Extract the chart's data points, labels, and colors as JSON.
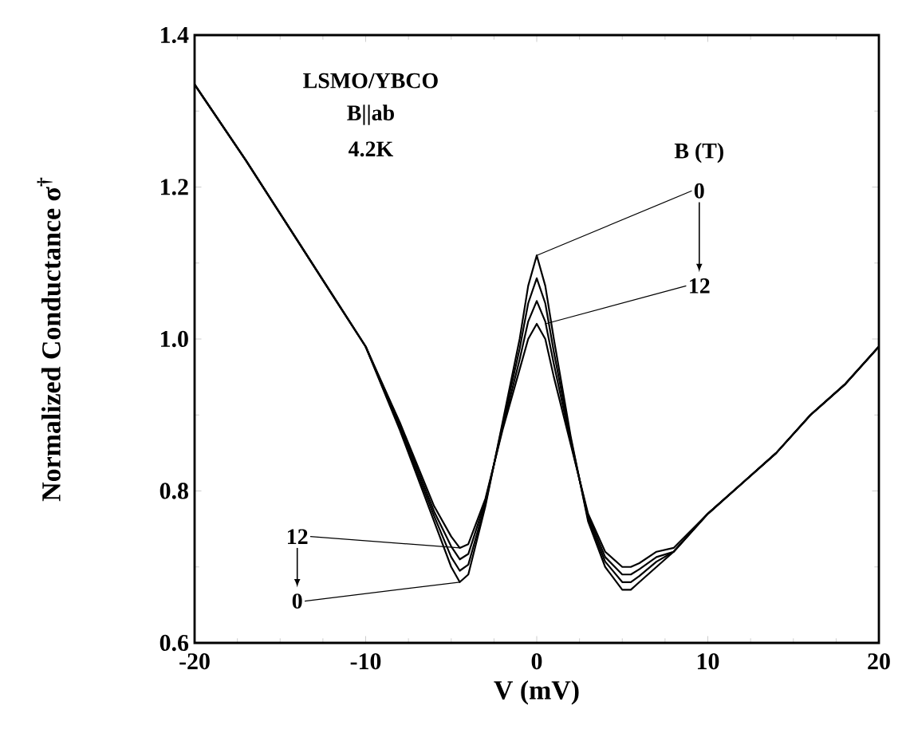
{
  "chart_data": {
    "type": "line",
    "xlabel": "V  (mV)",
    "ylabel": "Normalized  Conductance  σ$^{†}$",
    "x": [
      -20,
      -17,
      -14,
      -12,
      -10,
      -8,
      -6,
      -5,
      -4.5,
      -4,
      -3,
      -2,
      -1,
      -0.5,
      0,
      0.5,
      1,
      2,
      3,
      4,
      5,
      5.5,
      6,
      7,
      8,
      10,
      12,
      14,
      16,
      18,
      20
    ],
    "series": [
      {
        "color": "#000000",
        "values": [
          1.335,
          1.235,
          1.13,
          1.06,
          0.99,
          0.88,
          0.76,
          0.7,
          0.68,
          0.69,
          0.78,
          0.89,
          1.0,
          1.07,
          1.11,
          1.07,
          1.0,
          0.87,
          0.76,
          0.7,
          0.67,
          0.67,
          0.68,
          0.7,
          0.72,
          0.77,
          0.81,
          0.85,
          0.9,
          0.94,
          0.99
        ]
      },
      {
        "color": "#000000",
        "values": [
          1.335,
          1.235,
          1.13,
          1.06,
          0.99,
          0.883,
          0.767,
          0.713,
          0.695,
          0.703,
          0.783,
          0.887,
          0.987,
          1.047,
          1.08,
          1.047,
          0.983,
          0.867,
          0.763,
          0.707,
          0.68,
          0.68,
          0.688,
          0.707,
          0.72,
          0.77,
          0.81,
          0.85,
          0.9,
          0.94,
          0.99
        ]
      },
      {
        "color": "#000000",
        "values": [
          1.335,
          1.235,
          1.13,
          1.06,
          0.99,
          0.887,
          0.773,
          0.727,
          0.71,
          0.717,
          0.787,
          0.883,
          0.973,
          1.023,
          1.05,
          1.023,
          0.967,
          0.863,
          0.767,
          0.713,
          0.69,
          0.69,
          0.697,
          0.713,
          0.72,
          0.77,
          0.81,
          0.85,
          0.9,
          0.94,
          0.99
        ]
      },
      {
        "color": "#000000",
        "values": [
          1.335,
          1.235,
          1.13,
          1.06,
          0.99,
          0.89,
          0.78,
          0.74,
          0.725,
          0.73,
          0.79,
          0.88,
          0.96,
          1.0,
          1.02,
          1.0,
          0.95,
          0.86,
          0.77,
          0.72,
          0.7,
          0.7,
          0.705,
          0.72,
          0.725,
          0.77,
          0.81,
          0.85,
          0.9,
          0.94,
          0.99
        ]
      }
    ],
    "xlim": [
      -20,
      20
    ],
    "ylim": [
      0.6,
      1.4
    ],
    "xticks": [
      -20,
      -10,
      0,
      10,
      20
    ],
    "yticks": [
      0.6,
      0.8,
      {
        "value": 1.0,
        "label": "1.0"
      },
      1.2,
      1.4
    ],
    "grid": false,
    "marker": "none",
    "line_style": "solid",
    "annotations": [
      "LSMO/YBCO",
      "B||ab",
      "4.2K",
      "B  (T)",
      {
        "text": "0",
        "x": 0,
        "y": 1.11
      },
      {
        "text": "12",
        "x": 0.5,
        "y": 1.02
      },
      {
        "text": "12",
        "x": -4.5,
        "y": 0.725
      },
      {
        "text": "0",
        "x": -4.5,
        "y": 0.68
      }
    ]
  }
}
